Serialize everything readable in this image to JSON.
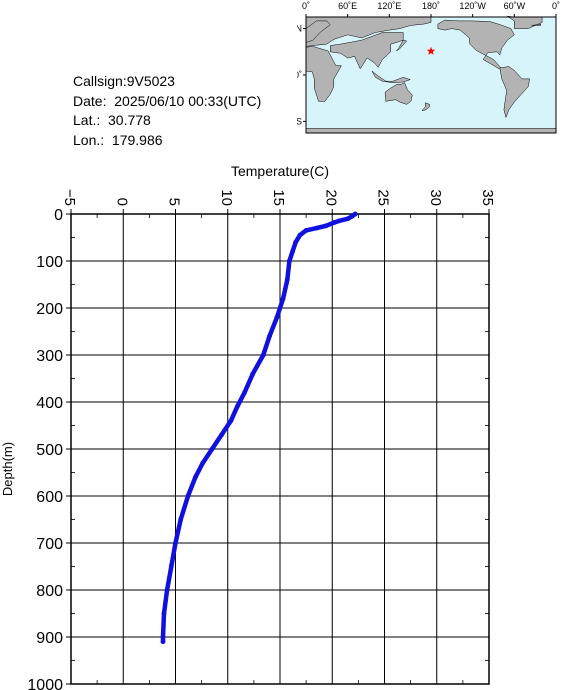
{
  "info": {
    "callsign": "Callsign:9V5023",
    "date": "Date:  2025/06/10 00:33(UTC)",
    "lat": "Lat.:  30.778",
    "lon": "Lon.:  179.986"
  },
  "map": {
    "lon_labels": [
      "0˚",
      "60˚E",
      "120˚E",
      "180˚",
      "120˚W",
      "60˚W",
      "0˚"
    ],
    "lat_labels": [
      "60˚N",
      "0˚",
      "60˚S"
    ],
    "ocean_color": "#d8f4fb",
    "land_color": "#b3b3b3",
    "marker_color": "#ff0000",
    "marker": {
      "lat": 30.778,
      "lon": 179.986
    }
  },
  "chart_data": {
    "type": "line",
    "title": "",
    "xlabel": "Temperature(C)",
    "ylabel": "Depth(m)",
    "xlim": [
      -5,
      35
    ],
    "ylim": [
      1000,
      0
    ],
    "x_ticks": [
      "−5",
      "0",
      "5",
      "10",
      "15",
      "20",
      "25",
      "30",
      "35"
    ],
    "y_ticks": [
      "0",
      "100",
      "200",
      "300",
      "400",
      "500",
      "600",
      "700",
      "800",
      "900",
      "1000"
    ],
    "grid": true,
    "line_color": "#1010e0",
    "series": [
      {
        "name": "",
        "points": [
          [
            22.2,
            0
          ],
          [
            21.9,
            5
          ],
          [
            21.5,
            10
          ],
          [
            20.6,
            15
          ],
          [
            20.2,
            18
          ],
          [
            19.4,
            25
          ],
          [
            18.5,
            30
          ],
          [
            17.5,
            35
          ],
          [
            16.9,
            45
          ],
          [
            16.5,
            60
          ],
          [
            16.2,
            80
          ],
          [
            15.9,
            100
          ],
          [
            15.7,
            140
          ],
          [
            15.3,
            180
          ],
          [
            14.7,
            220
          ],
          [
            14.0,
            260
          ],
          [
            13.4,
            300
          ],
          [
            12.4,
            340
          ],
          [
            11.6,
            380
          ],
          [
            10.9,
            410
          ],
          [
            10.3,
            440
          ],
          [
            9.4,
            470
          ],
          [
            8.5,
            500
          ],
          [
            7.6,
            530
          ],
          [
            6.9,
            560
          ],
          [
            6.2,
            600
          ],
          [
            5.5,
            650
          ],
          [
            5.0,
            700
          ],
          [
            4.6,
            750
          ],
          [
            4.2,
            800
          ],
          [
            3.9,
            850
          ],
          [
            3.8,
            900
          ],
          [
            3.8,
            910
          ]
        ]
      }
    ]
  }
}
